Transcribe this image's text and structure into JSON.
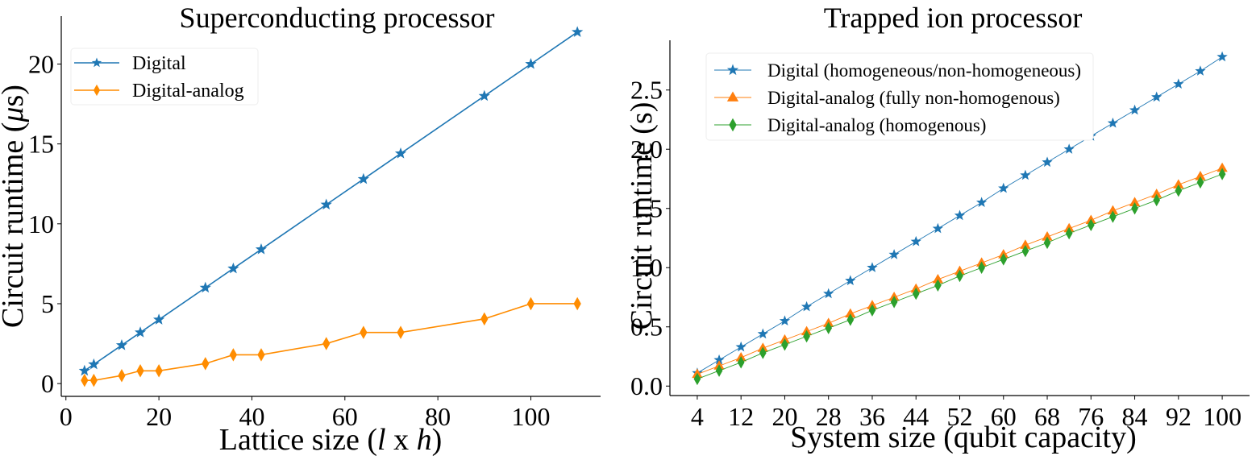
{
  "chart_data": [
    {
      "type": "line",
      "title": "Superconducting processor",
      "xlabel": "Lattice size (l x h)",
      "ylabel": "Circuit runtime (μs)",
      "xlim": [
        -1,
        115
      ],
      "ylim": [
        -0.8,
        23
      ],
      "xticks": [
        0,
        20,
        40,
        60,
        80,
        100
      ],
      "xtick_labels": [
        "0",
        "20",
        "40",
        "60",
        "80",
        "100"
      ],
      "yticks": [
        0,
        5,
        10,
        15,
        20
      ],
      "ytick_labels": [
        "0",
        "5",
        "10",
        "15",
        "20"
      ],
      "grid": false,
      "legend_position": "top-left",
      "x": [
        4,
        6,
        12,
        16,
        20,
        30,
        36,
        42,
        56,
        64,
        72,
        90,
        100,
        110
      ],
      "series": [
        {
          "name": "Digital",
          "marker": "star",
          "color": "#1f77b4",
          "values": [
            0.8,
            1.2,
            2.4,
            3.2,
            4.0,
            6.0,
            7.2,
            8.4,
            11.2,
            12.8,
            14.4,
            18.0,
            20.0,
            22.0
          ]
        },
        {
          "name": "Digital-analog",
          "marker": "thin_diamond",
          "color": "#ff8c00",
          "values": [
            0.2,
            0.2,
            0.5,
            0.8,
            0.8,
            1.25,
            1.8,
            1.8,
            2.5,
            3.2,
            3.2,
            4.05,
            5.0,
            5.0
          ]
        }
      ]
    },
    {
      "type": "line",
      "title": "Trapped ion processor",
      "xlabel": "System size (qubit capacity)",
      "ylabel": "Circuit runtime (s)",
      "xlim": [
        -1,
        105
      ],
      "ylim": [
        -0.08,
        2.92
      ],
      "xticks": [
        4,
        12,
        20,
        28,
        36,
        44,
        52,
        60,
        68,
        76,
        84,
        92,
        100
      ],
      "xtick_labels": [
        "4",
        "12",
        "20",
        "28",
        "36",
        "44",
        "52",
        "60",
        "68",
        "76",
        "84",
        "92",
        "100"
      ],
      "yticks": [
        0.0,
        0.5,
        1.0,
        1.5,
        2.0,
        2.5
      ],
      "ytick_labels": [
        "0.0",
        "0.5",
        "1.0",
        "1.5",
        "2.0",
        "2.5"
      ],
      "grid": false,
      "legend_position": "top-left",
      "x": [
        4,
        8,
        12,
        16,
        20,
        24,
        28,
        32,
        36,
        40,
        44,
        48,
        52,
        56,
        60,
        64,
        68,
        72,
        76,
        80,
        84,
        88,
        92,
        96,
        100
      ],
      "series": [
        {
          "name": "Digital (homogeneous/non-homogeneous)",
          "marker": "star",
          "color": "#1f77b4",
          "values": [
            0.11,
            0.22,
            0.33,
            0.44,
            0.55,
            0.67,
            0.78,
            0.89,
            1.0,
            1.11,
            1.22,
            1.33,
            1.44,
            1.55,
            1.67,
            1.78,
            1.89,
            2.0,
            2.11,
            2.22,
            2.33,
            2.44,
            2.55,
            2.66,
            2.78
          ]
        },
        {
          "name": "Digital-analog (fully non-homogenous)",
          "marker": "triangle",
          "color": "#ff7f0e",
          "values": [
            0.1,
            0.17,
            0.24,
            0.32,
            0.39,
            0.46,
            0.53,
            0.61,
            0.68,
            0.75,
            0.82,
            0.9,
            0.97,
            1.04,
            1.11,
            1.19,
            1.26,
            1.33,
            1.4,
            1.48,
            1.55,
            1.62,
            1.7,
            1.77,
            1.84
          ]
        },
        {
          "name": "Digital-analog (homogenous)",
          "marker": "thin_diamond",
          "color": "#2ca02c",
          "values": [
            0.06,
            0.13,
            0.2,
            0.28,
            0.35,
            0.42,
            0.49,
            0.56,
            0.64,
            0.71,
            0.78,
            0.85,
            0.93,
            1.0,
            1.07,
            1.14,
            1.21,
            1.29,
            1.36,
            1.43,
            1.5,
            1.57,
            1.65,
            1.72,
            1.79
          ]
        }
      ]
    }
  ]
}
